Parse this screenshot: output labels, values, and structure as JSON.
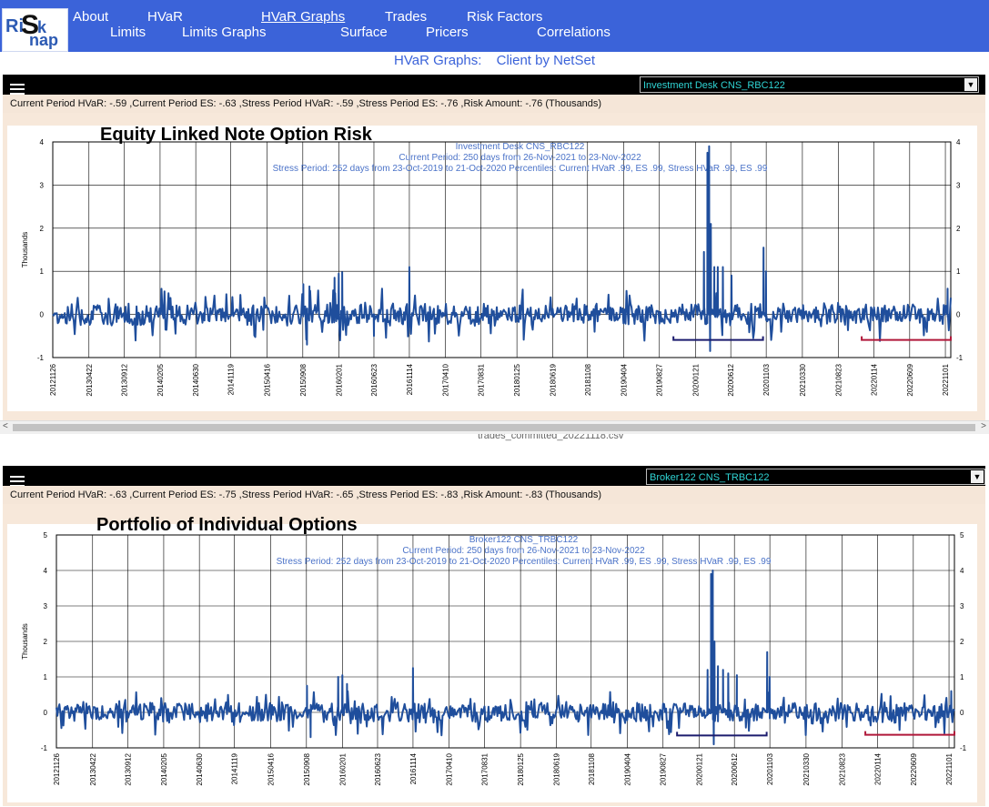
{
  "app": {
    "logo_parts": [
      "Ri",
      "S",
      "k",
      "nap"
    ]
  },
  "nav": {
    "row1": [
      "About",
      "HVaR",
      "HVaR Graphs",
      "Trades",
      "Risk Factors"
    ],
    "row2": [
      "Limits",
      "Limits Graphs",
      "Surface",
      "Pricers",
      "Correlations"
    ],
    "active": "HVaR Graphs"
  },
  "page_subtitle": {
    "left": "HVaR Graphs:",
    "right": "Client by NetSet"
  },
  "colors": {
    "nav_bg": "#3b63d9",
    "series": "#1f4e9c",
    "current_bracket": "#b0183a",
    "stress_bracket": "#1c1c6e",
    "panel_bg": "#f7e8da",
    "header_text": "#4a72c8"
  },
  "scrollbar": {
    "left_arrow": "<",
    "right_arrow": ">"
  },
  "taskbar_filename": "trades_committed_20221118.csv",
  "panels": [
    {
      "menu_icon": "hamburger-icon",
      "selector_value": "Investment Desk CNS_RBC122",
      "stats_text": "Current Period HVaR: -.59 ,Current Period ES: -.63 ,Stress Period HVaR: -.59 ,Stress Period ES: -.76 ,Risk Amount: -.76 (Thousands)",
      "big_title": "Equity Linked Note Option Risk"
    },
    {
      "menu_icon": "hamburger-icon",
      "selector_value": "Broker122 CNS_TRBC122",
      "stats_text": "Current Period HVaR: -.63 ,Current Period ES: -.75 ,Stress Period HVaR: -.65 ,Stress Period ES: -.83 ,Risk Amount: -.83 (Thousands)",
      "big_title": "Portfolio of Individual Options"
    }
  ],
  "chart_data": [
    {
      "type": "line",
      "header_lines": [
        "Investment Desk CNS_RBC122",
        "Current Period: 250 days from 26-Nov-2021 to 23-Nov-2022",
        "Stress Period: 252 days from 23-Oct-2019 to 21-Oct-2020  Percentiles:  Current HVaR .99,   ES .99,    Stress HVaR .99,   ES .99"
      ],
      "ylabel": "Thousands",
      "ylim": [
        -1,
        4
      ],
      "yticks": [
        -1,
        0,
        1,
        2,
        3,
        4
      ],
      "xticks": [
        "20121126",
        "20130422",
        "20130912",
        "20140205",
        "20140630",
        "20141119",
        "20150416",
        "20150908",
        "20160201",
        "20160623",
        "20161114",
        "20170410",
        "20170831",
        "20180125",
        "20180619",
        "20181108",
        "20190404",
        "20190827",
        "20200121",
        "20200612",
        "20201103",
        "20210330",
        "20210823",
        "20220114",
        "20220609",
        "20221101"
      ],
      "x_range": [
        "2012-11-26",
        "2022-11-23"
      ],
      "stress_bracket": {
        "from": "2019-10-23",
        "to": "2020-10-21",
        "value": -0.59
      },
      "current_bracket": {
        "from": "2021-11-26",
        "to": "2022-11-23",
        "value": -0.59
      },
      "profile": {
        "noise": 0.22,
        "seed": 7
      },
      "spikes": [
        {
          "date": "2015-09-10",
          "value": 0.7
        },
        {
          "date": "2015-10-05",
          "value": 0.65
        },
        {
          "date": "2016-01-15",
          "value": 0.85
        },
        {
          "date": "2016-02-01",
          "value": 0.95
        },
        {
          "date": "2016-02-15",
          "value": 0.98
        },
        {
          "date": "2016-11-14",
          "value": 1.1
        },
        {
          "date": "2016-06-23",
          "value": -0.5
        },
        {
          "date": "2015-09-25",
          "value": -0.7
        },
        {
          "date": "2020-02-24",
          "value": 1.45
        },
        {
          "date": "2020-03-09",
          "value": 3.75
        },
        {
          "date": "2020-03-16",
          "value": 3.9
        },
        {
          "date": "2020-03-23",
          "value": 2.1
        },
        {
          "date": "2020-04-06",
          "value": 1.1
        },
        {
          "date": "2020-04-20",
          "value": 1.1
        },
        {
          "date": "2020-05-11",
          "value": 1.1
        },
        {
          "date": "2020-06-15",
          "value": 0.9
        },
        {
          "date": "2020-03-20",
          "value": -0.85
        },
        {
          "date": "2020-10-23",
          "value": 1.55
        },
        {
          "date": "2020-11-02",
          "value": 1.0
        },
        {
          "date": "2022-11-10",
          "value": 0.6
        }
      ]
    },
    {
      "type": "line",
      "header_lines": [
        "Broker122 CNS_TRBC122",
        "Current Period: 250 days from 26-Nov-2021 to 23-Nov-2022",
        "Stress Period: 252 days from 23-Oct-2019 to 21-Oct-2020  Percentiles:  Current HVaR .99,   ES .99,    Stress HVaR .99,   ES .99"
      ],
      "ylabel": "Thousands",
      "ylim": [
        -1,
        5
      ],
      "yticks": [
        -1,
        0,
        1,
        2,
        3,
        4,
        5
      ],
      "xticks": [
        "20121126",
        "20130422",
        "20130912",
        "20140205",
        "20140630",
        "20141119",
        "20150416",
        "20150908",
        "20160201",
        "20160623",
        "20161114",
        "20170410",
        "20170831",
        "20180125",
        "20180619",
        "20181108",
        "20190404",
        "20190827",
        "20200121",
        "20200612",
        "20201103",
        "20210330",
        "20210823",
        "20220114",
        "20220609",
        "20221101"
      ],
      "x_range": [
        "2012-11-26",
        "2022-11-23"
      ],
      "stress_bracket": {
        "from": "2019-10-23",
        "to": "2020-10-21",
        "value": -0.65
      },
      "current_bracket": {
        "from": "2021-11-26",
        "to": "2022-11-23",
        "value": -0.63
      },
      "profile": {
        "noise": 0.25,
        "seed": 11
      },
      "spikes": [
        {
          "date": "2015-09-10",
          "value": 0.75
        },
        {
          "date": "2016-01-15",
          "value": 1.0
        },
        {
          "date": "2016-02-01",
          "value": 1.05
        },
        {
          "date": "2016-02-20",
          "value": 0.8
        },
        {
          "date": "2016-11-14",
          "value": 1.25
        },
        {
          "date": "2015-09-25",
          "value": -0.7
        },
        {
          "date": "2020-02-24",
          "value": 1.2
        },
        {
          "date": "2020-03-09",
          "value": 3.9
        },
        {
          "date": "2020-03-16",
          "value": 4.0
        },
        {
          "date": "2020-03-23",
          "value": 2.0
        },
        {
          "date": "2020-04-06",
          "value": 1.3
        },
        {
          "date": "2020-04-27",
          "value": 1.2
        },
        {
          "date": "2020-05-18",
          "value": 1.1
        },
        {
          "date": "2020-06-22",
          "value": 1.05
        },
        {
          "date": "2020-03-20",
          "value": -0.9
        },
        {
          "date": "2020-10-23",
          "value": 1.7
        },
        {
          "date": "2020-11-02",
          "value": 1.0
        },
        {
          "date": "2022-11-10",
          "value": 0.6
        }
      ]
    }
  ]
}
